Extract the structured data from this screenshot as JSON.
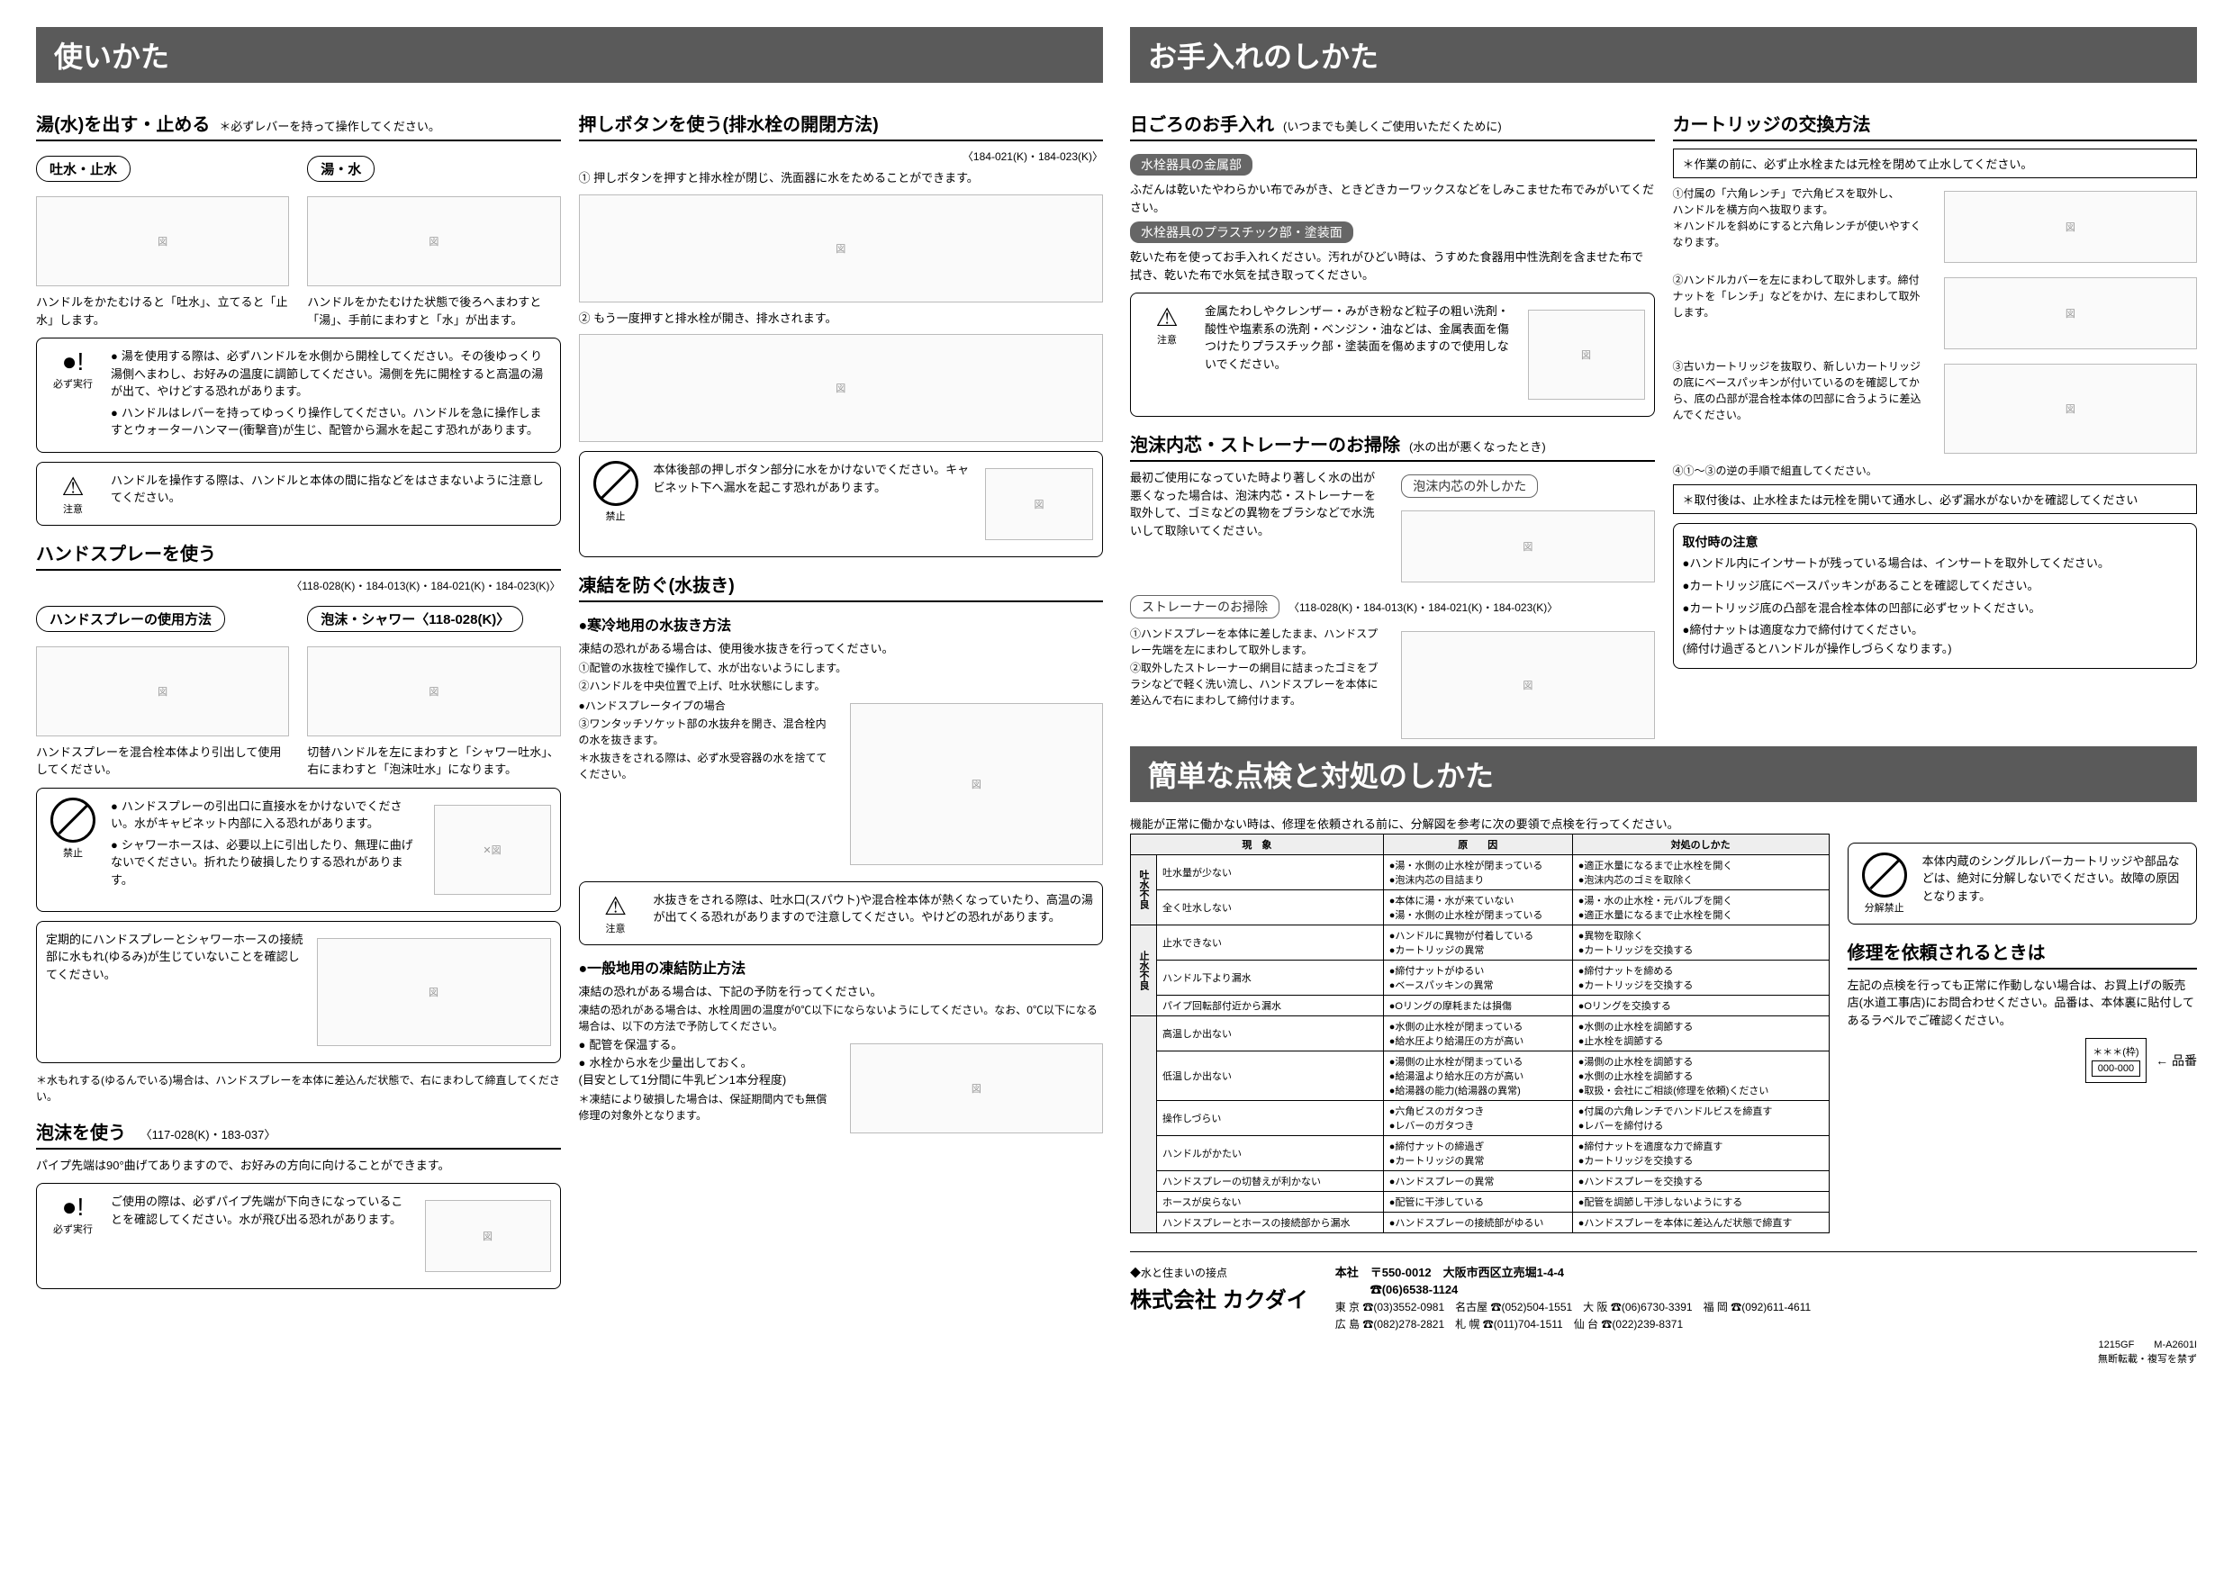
{
  "banner1": "使いかた",
  "banner2": "お手入れのしかた",
  "banner3": "簡単な点検と対処のしかた",
  "s1": {
    "title": "湯(水)を出す・止める",
    "note": "＊必ずレバーを持って操作してください。",
    "left_pill": "吐水・止水",
    "right_pill": "湯・水",
    "left_text": "ハンドルをかたむけると「吐水」、立てると「止水」します。",
    "right_text": "ハンドルをかたむけた状態で後ろへまわすと「湯」、手前にまわすと「水」が出ます。",
    "warn1_icon": "必ず実行",
    "warn1_li1": "湯を使用する際は、必ずハンドルを水側から開栓してください。その後ゆっくり湯側へまわし、お好みの温度に調節してください。湯側を先に開栓すると高温の湯が出て、やけどする恐れがあります。",
    "warn1_li2": "ハンドルはレバーを持ってゆっくり操作してください。ハンドルを急に操作しますとウォーターハンマー(衝撃音)が生じ、配管から漏水を起こす恐れがあります。",
    "warn2_icon": "注意",
    "warn2_text": "ハンドルを操作する際は、ハンドルと本体の間に指などをはさまないように注意してください。"
  },
  "s2": {
    "title": "ハンドスプレーを使う",
    "models": "〈118-028(K)・184-013(K)・184-021(K)・184-023(K)〉",
    "pill1": "ハンドスプレーの使用方法",
    "pill2": "泡沫・シャワー〈118-028(K)〉",
    "text1": "ハンドスプレーを混合栓本体より引出して使用してください。",
    "text2": "切替ハンドルを左にまわすと「シャワー吐水」、右にまわすと「泡沫吐水」になります。",
    "forbid_label": "禁止",
    "warnA_li1": "ハンドスプレーの引出口に直接水をかけないでください。水がキャビネット内部に入る恐れがあります。",
    "warnA_li2": "シャワーホースは、必要以上に引出したり、無理に曲げないでください。折れたり破損したりする恐れがあります。",
    "warnB_text": "定期的にハンドスプレーとシャワーホースの接続部に水もれ(ゆるみ)が生じていないことを確認してください。",
    "foot": "＊水もれする(ゆるんでいる)場合は、ハンドスプレーを本体に差込んだ状態で、右にまわして締直してください。"
  },
  "s3": {
    "title": "泡沫を使う",
    "models": "〈117-028(K)・183-037〉",
    "text": "パイプ先端は90°曲げてありますので、お好みの方向に向けることができます。",
    "warn_icon": "必ず実行",
    "warn_text": "ご使用の際は、必ずパイプ先端が下向きになっていることを確認してください。水が飛び出る恐れがあります。"
  },
  "s4": {
    "title": "押しボタンを使う(排水栓の開閉方法)",
    "models": "〈184-021(K)・184-023(K)〉",
    "l1": "① 押しボタンを押すと排水栓が閉じ、洗面器に水をためることができます。",
    "l2": "② もう一度押すと排水栓が開き、排水されます。",
    "forbid_label": "禁止",
    "forbid_text": "本体後部の押しボタン部分に水をかけないでください。キャビネット下へ漏水を起こす恐れがあります。"
  },
  "s5": {
    "title": "凍結を防ぐ(水抜き)",
    "h_cold": "●寒冷地用の水抜き方法",
    "cold_intro": "凍結の恐れがある場合は、使用後水抜きを行ってください。",
    "cold_l1": "①配管の水抜栓で操作して、水が出ないようにします。",
    "cold_l2": "②ハンドルを中央位置で上げ、吐水状態にします。",
    "cold_sub": "●ハンドスプレータイプの場合",
    "cold_l3": "③ワンタッチソケット部の水抜弁を開き、混合栓内の水を抜きます。",
    "cold_note": "＊水抜きをされる際は、必ず水受容器の水を捨ててください。",
    "cold_warn_icon": "注意",
    "cold_warn": "水抜きをされる際は、吐水口(スパウト)や混合栓本体が熱くなっていたり、高温の湯が出てくる恐れがありますので注意してください。やけどの恐れがあります。",
    "h_gen": "●一般地用の凍結防止方法",
    "gen_intro": "凍結の恐れがある場合は、下記の予防を行ってください。",
    "gen_text": "凍結の恐れがある場合は、水栓周囲の温度が0℃以下にならないようにしてください。なお、0℃以下になる場合は、以下の方法で予防してください。",
    "gen_li1": "配管を保温する。",
    "gen_li2": "水栓から水を少量出しておく。\n(目安として1分間に牛乳ビン1本分程度)",
    "gen_foot": "＊凍結により破損した場合は、保証期間内でも無償修理の対象外となります。"
  },
  "s6": {
    "title": "日ごろのお手入れ",
    "note": "(いつまでも美しくご使用いただくために)",
    "p1": "水栓器具の金属部",
    "p1t": "ふだんは乾いたやわらかい布でみがき、ときどきカーワックスなどをしみこませた布でみがいてください。",
    "p2": "水栓器具のプラスチック部・塗装面",
    "p2t": "乾いた布を使ってお手入れください。汚れがひどい時は、うすめた食器用中性洗剤を含ませた布で拭き、乾いた布で水気を拭き取ってください。",
    "warn_icon": "注意",
    "warn": "金属たわしやクレンザー・みがき粉など粒子の粗い洗剤・酸性や塩素系の洗剤・ベンジン・油などは、金属表面を傷つけたりプラスチック部・塗装面を傷めますので使用しないでください。"
  },
  "s7": {
    "title": "泡沫内芯・ストレーナーのお掃除",
    "note": "(水の出が悪くなったとき)",
    "pill1": "泡沫内芯の外しかた",
    "text1": "最初ご使用になっていた時より著しく水の出が悪くなった場合は、泡沫内芯・ストレーナーを取外して、ゴミなどの異物をブラシなどで水洗いして取除いてください。",
    "pill2": "ストレーナーのお掃除",
    "models2": "〈118-028(K)・184-013(K)・184-021(K)・184-023(K)〉",
    "l21": "①ハンドスプレーを本体に差したまま、ハンドスプレー先端を左にまわして取外します。",
    "l22": "②取外したストレーナーの網目に詰まったゴミをブラシなどで軽く洗い流し、ハンドスプレーを本体に差込んで右にまわして締付けます。"
  },
  "s8": {
    "title": "カートリッジの交換方法",
    "star": "＊作業の前に、必ず止水栓または元栓を閉めて止水してください。",
    "l1": "①付属の「六角レンチ」で六角ビスを取外し、\nハンドルを横方向へ抜取ります。\n＊ハンドルを斜めにすると六角レンチが使いやすくなります。",
    "l2": "②ハンドルカバーを左にまわして取外します。締付ナットを「レンチ」などをかけ、左にまわして取外します。",
    "l3": "③古いカートリッジを抜取り、新しいカートリッジの底にベースパッキンが付いているのを確認してから、底の凸部が混合栓本体の凹部に合うように差込んでください。",
    "l4": "④①～③の逆の手順で組直してください。",
    "note": "＊取付後は、止水栓または元栓を開いて通水し、必ず漏水がないかを確認してください",
    "cau_title": "取付時の注意",
    "cau1": "ハンドル内にインサートが残っている場合は、インサートを取外してください。",
    "cau2": "カートリッジ底にベースパッキンがあることを確認してください。",
    "cau3": "カートリッジ底の凸部を混合栓本体の凹部に必ずセットください。",
    "cau4": "締付ナットは適度な力で締付けてください。\n(締付け過ぎるとハンドルが操作しづらくなります。)"
  },
  "trouble": {
    "intro": "機能が正常に働かない時は、修理を依頼される前に、分解図を参考に次の要領で点検を行ってください。",
    "th1": "現　象",
    "th2": "原　　因",
    "th3": "対処のしかた",
    "g1": "吐水不良",
    "rows1": [
      [
        "吐水量が少ない",
        "●湯・水側の止水栓が閉まっている\n●泡沫内芯の目詰まり",
        "●適正水量になるまで止水栓を開く\n●泡沫内芯のゴミを取除く"
      ],
      [
        "全く吐水しない",
        "●本体に湯・水が来ていない\n●湯・水側の止水栓が閉まっている",
        "●湯・水の止水栓・元バルブを開く\n●適正水量になるまで止水栓を開く"
      ]
    ],
    "g2": "止水不良",
    "rows2": [
      [
        "止水できない",
        "●ハンドルに異物が付着している\n●カートリッジの異常",
        "●異物を取除く\n●カートリッジを交換する"
      ],
      [
        "ハンドル下より漏水",
        "●締付ナットがゆるい\n●ベースパッキンの異常",
        "●締付ナットを締める\n●カートリッジを交換する"
      ],
      [
        "パイプ回転部付近から漏水",
        "●Oリングの摩耗または損傷",
        "●Oリングを交換する"
      ]
    ],
    "rows3": [
      [
        "高温しか出ない",
        "●水側の止水栓が閉まっている\n●給水圧より給湯圧の方が高い",
        "●水側の止水栓を調節する\n●止水栓を調節する"
      ],
      [
        "低温しか出ない",
        "●湯側の止水栓が閉まっている\n●給湯温より給水圧の方が高い\n●給湯器の能力(給湯器の異常)",
        "●湯側の止水栓を調節する\n●水側の止水栓を調節する\n●取扱・会社にご相談(修理を依頼)ください"
      ],
      [
        "操作しづらい",
        "●六角ビスのガタつき\n●レバーのガタつき",
        "●付属の六角レンチでハンドルビスを締直す\n●レバーを締付ける"
      ],
      [
        "ハンドルがかたい",
        "●締付ナットの締過ぎ\n●カートリッジの異常",
        "●締付ナットを適度な力で締直す\n●カートリッジを交換する"
      ],
      [
        "ハンドスプレーの切替えが利かない",
        "●ハンドスプレーの異常",
        "●ハンドスプレーを交換する"
      ],
      [
        "ホースが戻らない",
        "●配管に干渉している",
        "●配管を調節し干渉しないようにする"
      ],
      [
        "ハンドスプレーとホースの接続部から漏水",
        "●ハンドスプレーの接続部がゆるい",
        "●ハンドスプレーを本体に差込んだ状態で締直す"
      ]
    ],
    "side_icon": "分解禁止",
    "side": "本体内蔵のシングルレバーカートリッジや部品などは、絶対に分解しないでください。故障の原因となります。",
    "repair_h": "修理を依頼されるときは",
    "repair_t": "左記の点検を行っても正常に作動しない場合は、お買上げの販売店(水道工事店)にお問合わせください。品番は、本体裏に貼付してあるラベルでご確認ください。",
    "label1": "＊＊＊(枠)",
    "label2": "000-000",
    "label3": "← 品番"
  },
  "footer": {
    "tag": "◆水と住まいの接点",
    "company": "株式会社 カクダイ",
    "hq": "本社　〒550-0012　大阪市西区立売堀1-4-4\n　　　☎(06)6538-1124",
    "b1": "東 京 ☎(03)3552-0981　名古屋 ☎(052)504-1551　大 阪 ☎(06)6730-3391　福 岡 ☎(092)611-4611",
    "b2": "広 島 ☎(082)278-2821　札 幌 ☎(011)704-1511　仙 台 ☎(022)239-8371",
    "code1": "1215GF",
    "code2": "M-A2601I",
    "copy": "無断転載・複写を禁ず"
  }
}
